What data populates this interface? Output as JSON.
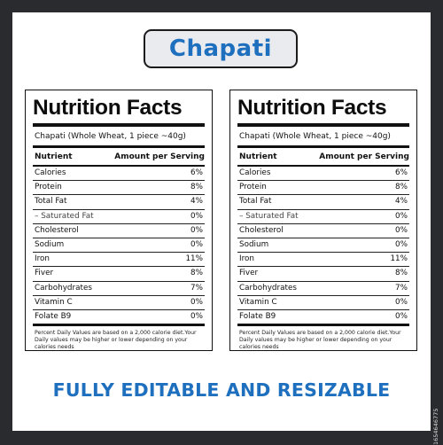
{
  "header": {
    "title": "Chapati"
  },
  "labels": [
    {
      "heading": "Nutrition Facts",
      "serving": "Chapati (Whole Wheat, 1 piece ~40g)",
      "col_nutrient": "Nutrient",
      "col_amount": "Amount per Serving",
      "rows": [
        {
          "name": "Calories",
          "value": "6%"
        },
        {
          "name": "Protein",
          "value": "8%"
        },
        {
          "name": "Total Fat",
          "value": "4%"
        },
        {
          "name": "– Saturated Fat",
          "value": "0%"
        },
        {
          "name": "Cholesterol",
          "value": "0%"
        },
        {
          "name": "Sodium",
          "value": "0%"
        },
        {
          "name": "Iron",
          "value": "11%"
        },
        {
          "name": "Fiver",
          "value": "8%"
        },
        {
          "name": "Carbohydrates",
          "value": "7%"
        },
        {
          "name": "Vitamin C",
          "value": "0%"
        },
        {
          "name": "Folate B9",
          "value": "0%"
        }
      ],
      "footnote": "Percent Daily Values are based on a 2,000 calorie diet.Your Daily values may be higher or lower depending on your calories needs"
    },
    {
      "heading": "Nutrition Facts",
      "serving": "Chapati (Whole Wheat, 1 piece ~40g)",
      "col_nutrient": "Nutrient",
      "col_amount": "Amount per Serving",
      "rows": [
        {
          "name": "Calories",
          "value": "6%"
        },
        {
          "name": "Protein",
          "value": "8%"
        },
        {
          "name": "Total Fat",
          "value": "4%"
        },
        {
          "name": "– Saturated Fat",
          "value": "0%"
        },
        {
          "name": "Cholesterol",
          "value": "0%"
        },
        {
          "name": "Sodium",
          "value": "0%"
        },
        {
          "name": "Iron",
          "value": "11%"
        },
        {
          "name": "Fiver",
          "value": "8%"
        },
        {
          "name": "Carbohydrates",
          "value": "7%"
        },
        {
          "name": "Vitamin C",
          "value": "0%"
        },
        {
          "name": "Folate B9",
          "value": "0%"
        }
      ],
      "footnote": "Percent Daily Values are based on a 2,000 calorie diet.Your Daily values may be higher or lower depending on your calories needs"
    }
  ],
  "banner": "FULLY EDITABLE AND RESIZABLE",
  "watermark": "1654646775",
  "colors": {
    "accent": "#1f6fbf",
    "background": "#2a2b2e",
    "pill": "#e9ebef"
  }
}
